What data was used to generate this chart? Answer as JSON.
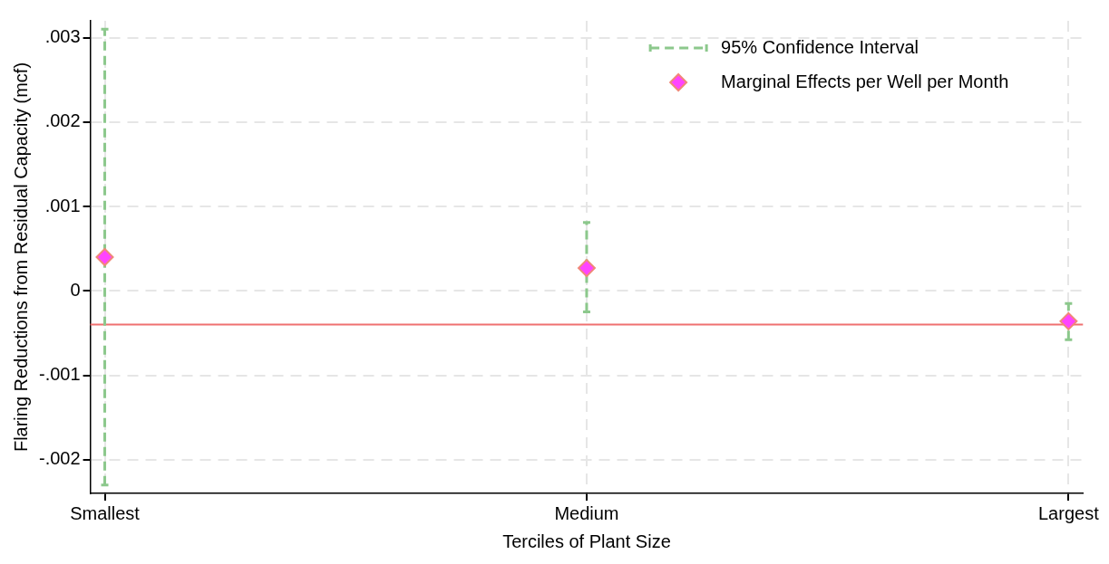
{
  "chart_data": {
    "type": "scatter",
    "xlabel": "Terciles of Plant Size",
    "ylabel": "Flaring Reductions from Residual Capacity (mcf)",
    "categories": [
      "Smallest",
      "Medium",
      "Largest"
    ],
    "series": [
      {
        "name": "Marginal Effects per Well per Month",
        "color": "#ff44ff",
        "values": [
          0.0004,
          0.00027,
          -0.00036
        ],
        "errors": [
          [
            -0.0023,
            0.0031
          ],
          [
            -0.00025,
            0.00081
          ],
          [
            -0.00058,
            -0.00015
          ]
        ]
      }
    ],
    "annotations": [
      "95% Confidence Interval"
    ],
    "ref_lines": [
      {
        "axis": "y",
        "value": -0.0004,
        "color": "#f07070"
      }
    ],
    "ylim": [
      -0.0024,
      0.0032
    ],
    "yticks": [
      {
        "value": -0.002,
        "label": "-.002"
      },
      {
        "value": -0.001,
        "label": "-.001"
      },
      0,
      {
        "value": 0.001,
        "label": ".001"
      },
      {
        "value": 0.002,
        "label": ".002"
      },
      {
        "value": 0.003,
        "label": ".003"
      }
    ],
    "grid": true,
    "legend": "top right",
    "marker": "diamond"
  }
}
